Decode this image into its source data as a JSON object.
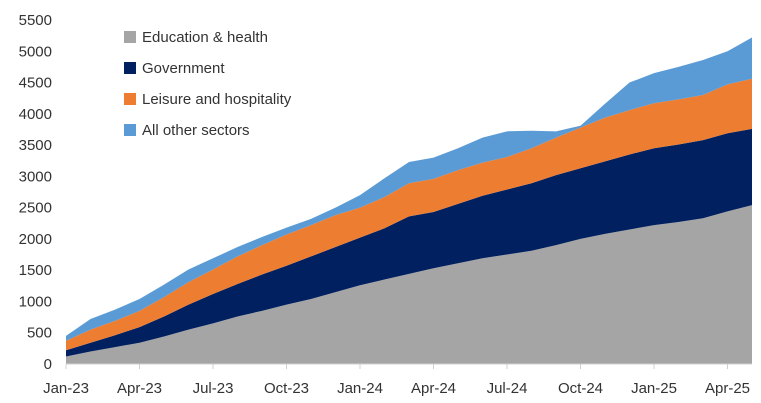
{
  "chart_data": {
    "type": "area",
    "stacked": true,
    "title": "",
    "xlabel": "",
    "ylabel": "",
    "ylim": [
      0,
      5500
    ],
    "yticks": [
      0,
      500,
      1000,
      1500,
      2000,
      2500,
      3000,
      3500,
      4000,
      4500,
      5000,
      5500
    ],
    "x": [
      "Jan-23",
      "Feb-23",
      "Mar-23",
      "Apr-23",
      "May-23",
      "Jun-23",
      "Jul-23",
      "Aug-23",
      "Sep-23",
      "Oct-23",
      "Nov-23",
      "Dec-23",
      "Jan-24",
      "Feb-24",
      "Mar-24",
      "Apr-24",
      "May-24",
      "Jun-24",
      "Jul-24",
      "Aug-24",
      "Sep-24",
      "Oct-24",
      "Nov-24",
      "Dec-24",
      "Jan-25",
      "Feb-25",
      "Mar-25",
      "Apr-25",
      "May-25"
    ],
    "xtick_labels": [
      "Jan-23",
      "Apr-23",
      "Jul-23",
      "Oct-23",
      "Jan-24",
      "Apr-24",
      "Jul-24",
      "Oct-24",
      "Jan-25",
      "Apr-25"
    ],
    "legend_position": "top-left",
    "grid": false,
    "series": [
      {
        "name": "Education & health",
        "color": "#A5A5A5",
        "values": [
          120,
          200,
          270,
          340,
          440,
          550,
          650,
          760,
          850,
          950,
          1040,
          1150,
          1260,
          1350,
          1440,
          1530,
          1610,
          1690,
          1750,
          1810,
          1900,
          2000,
          2080,
          2150,
          2220,
          2270,
          2330,
          2440,
          2540
        ]
      },
      {
        "name": "Government",
        "color": "#002060",
        "values": [
          100,
          140,
          190,
          250,
          320,
          400,
          470,
          520,
          580,
          620,
          680,
          720,
          760,
          820,
          920,
          900,
          950,
          1000,
          1040,
          1080,
          1120,
          1130,
          1160,
          1200,
          1230,
          1240,
          1250,
          1250,
          1220
        ]
      },
      {
        "name": "Leisure and hospitality",
        "color": "#ED7D31",
        "values": [
          150,
          210,
          230,
          260,
          310,
          360,
          390,
          440,
          470,
          500,
          500,
          510,
          480,
          500,
          530,
          530,
          540,
          530,
          520,
          560,
          600,
          650,
          700,
          710,
          720,
          720,
          720,
          780,
          800
        ]
      },
      {
        "name": "All other sectors",
        "color": "#5B9BD5",
        "values": [
          80,
          170,
          180,
          190,
          200,
          200,
          180,
          150,
          130,
          110,
          100,
          120,
          200,
          300,
          340,
          340,
          350,
          400,
          410,
          280,
          100,
          30,
          220,
          440,
          480,
          520,
          560,
          530,
          660
        ]
      }
    ]
  }
}
